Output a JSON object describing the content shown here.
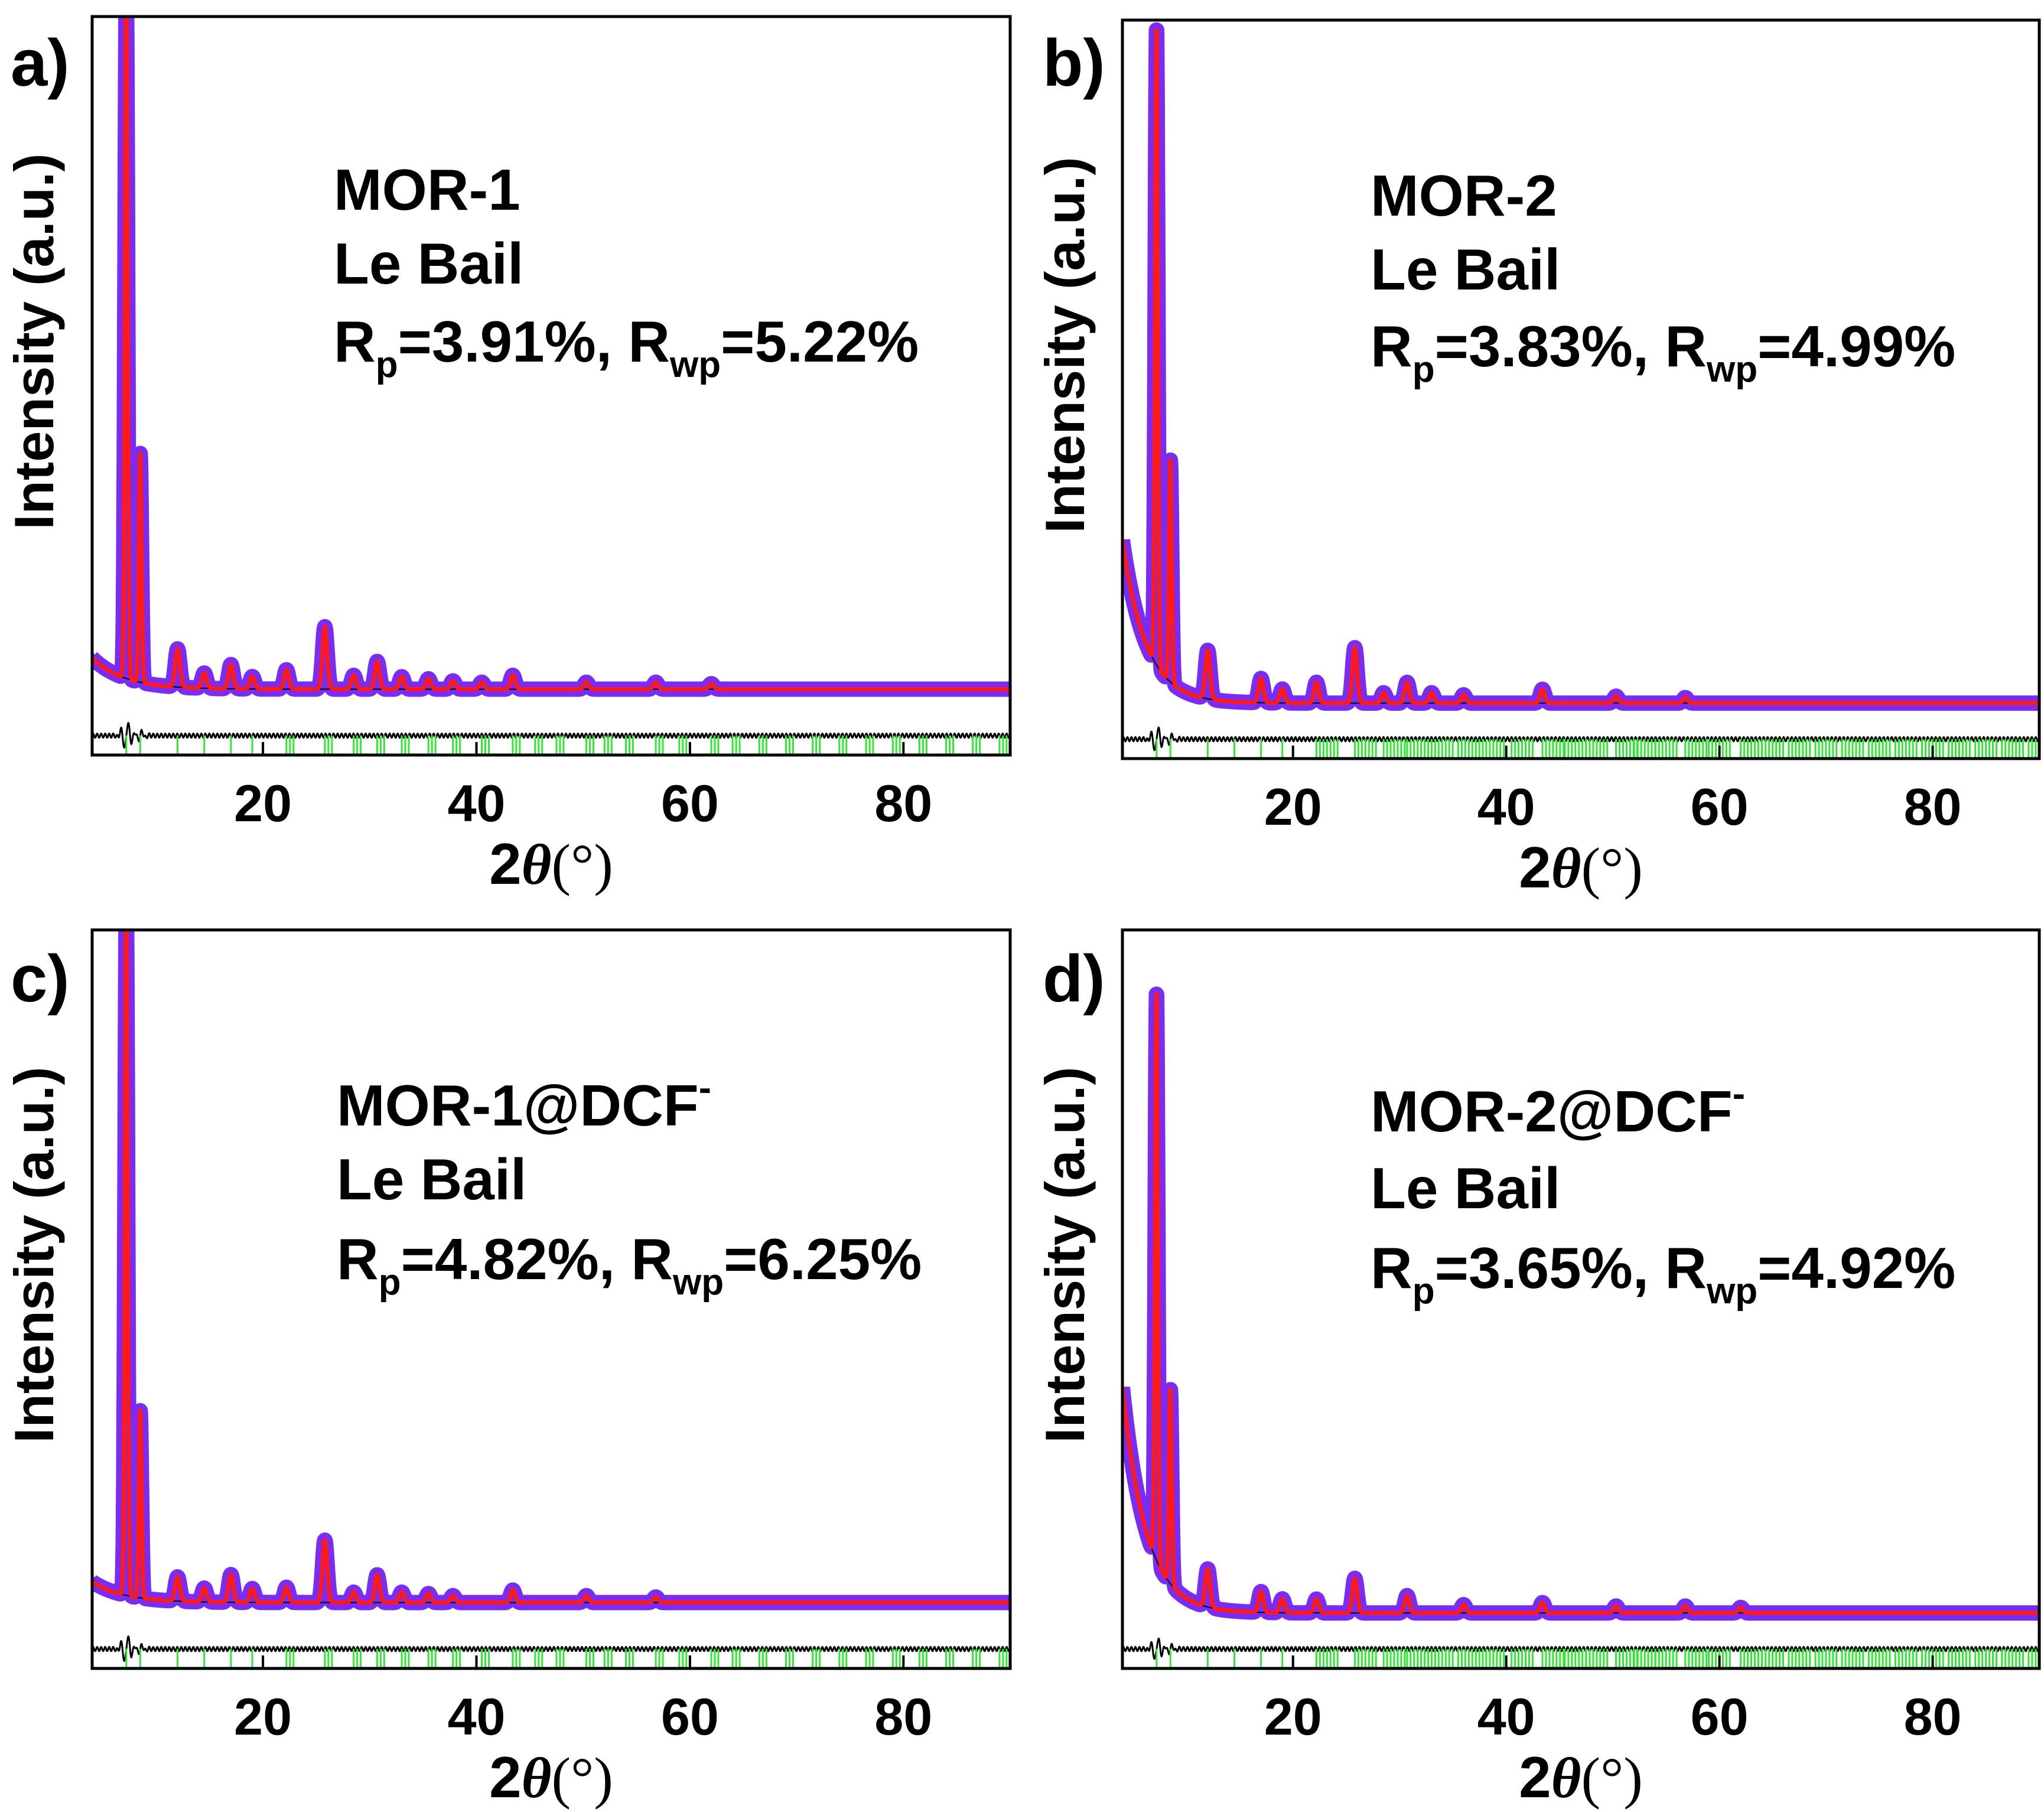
{
  "colors": {
    "observed": "#7b2cf2",
    "calculated": "#ff1a1a",
    "difference": "#000000",
    "background": "#000000",
    "bragg": "#33e633"
  },
  "chart_data": [
    {
      "type": "line",
      "panel_label": "a)",
      "sample": "MOR-1",
      "method": "Le Bail",
      "rp": "3.91%",
      "rwp": "5.22%",
      "rp_text": "3.91%, R",
      "rwp_text": "=5.22%",
      "xlabel_prefix": "2",
      "xlabel_symbol": "θ",
      "xlabel_unit": "(°)",
      "ylabel": "Intensity (a.u.)",
      "xlim": [
        4,
        90
      ],
      "ylim": [
        -0.065,
        1.0
      ],
      "xticks": [
        20,
        40,
        60,
        80
      ],
      "xtick_labels": [
        "20",
        "40",
        "60",
        "80"
      ],
      "baseline": 0.03,
      "start_intensity": 0.075,
      "bg_decay": 3.0,
      "peaks": [
        [
          7.2,
          1.0
        ],
        [
          8.5,
          0.33
        ],
        [
          12.0,
          0.055
        ],
        [
          14.5,
          0.022
        ],
        [
          17.0,
          0.035
        ],
        [
          19.0,
          0.018
        ],
        [
          22.2,
          0.028
        ],
        [
          25.8,
          0.09
        ],
        [
          28.5,
          0.02
        ],
        [
          30.7,
          0.04
        ],
        [
          33.0,
          0.018
        ],
        [
          35.5,
          0.015
        ],
        [
          37.8,
          0.012
        ],
        [
          40.5,
          0.01
        ],
        [
          43.4,
          0.02
        ],
        [
          50.3,
          0.01
        ],
        [
          56.8,
          0.01
        ],
        [
          62.0,
          0.008
        ]
      ],
      "bragg_positions": [
        7.2,
        8.5,
        12.0,
        14.5,
        17.0,
        19.0,
        22.2,
        25.8,
        28.5,
        30.7,
        33.0,
        35.5,
        37.8,
        40.5,
        43.4,
        45.5,
        47.5,
        50.3,
        52.0,
        54.0,
        56.8,
        59.0,
        62.0,
        64.0,
        66.5,
        69.0,
        71.5,
        74.0,
        76.5,
        79.0,
        81.5,
        84.0,
        86.5,
        89.0
      ],
      "bragg_density": "sparse"
    },
    {
      "type": "line",
      "panel_label": "b)",
      "sample": "MOR-2",
      "method": "Le Bail",
      "rp": "3.83%",
      "rwp": "4.99%",
      "rp_text": "3.83%, R",
      "rwp_text": "=4.99%",
      "xlabel_prefix": "2",
      "xlabel_symbol": "θ",
      "xlabel_unit": "(°)",
      "ylabel": "Intensity (a.u.)",
      "xlim": [
        4,
        90
      ],
      "ylim": [
        -0.065,
        1.0
      ],
      "xticks": [
        20,
        40,
        60,
        80
      ],
      "xtick_labels": [
        "20",
        "40",
        "60",
        "80"
      ],
      "baseline": 0.015,
      "start_intensity": 0.25,
      "bg_decay": 2.2,
      "peaks": [
        [
          7.2,
          0.92
        ],
        [
          8.5,
          0.32
        ],
        [
          12.0,
          0.07
        ],
        [
          17.0,
          0.035
        ],
        [
          19.0,
          0.02
        ],
        [
          22.2,
          0.03
        ],
        [
          25.8,
          0.08
        ],
        [
          28.5,
          0.015
        ],
        [
          30.7,
          0.03
        ],
        [
          33.0,
          0.015
        ],
        [
          36.0,
          0.012
        ],
        [
          43.4,
          0.02
        ],
        [
          50.3,
          0.01
        ],
        [
          56.8,
          0.008
        ]
      ],
      "bragg_positions": [
        7.2,
        8.5,
        12.0,
        14.5,
        17.0,
        19.0,
        22.2,
        25.8,
        28.5,
        30.7,
        33.0,
        35.5,
        37.8,
        40.5,
        43.4,
        45.5,
        47.5,
        50.3,
        52.0,
        54.0,
        56.8,
        59.0,
        62.0,
        64.0,
        66.5,
        69.0,
        71.5,
        74.0,
        76.5,
        79.0,
        81.5,
        84.0,
        86.5,
        89.0
      ],
      "bragg_density": "dense"
    },
    {
      "type": "line",
      "panel_label": "c)",
      "sample": "MOR-1@DCF",
      "sample_sup": "-",
      "method": "Le Bail",
      "rp": "4.82%",
      "rwp": "6.25%",
      "rp_text": "4.82%, R",
      "rwp_text": "=6.25%",
      "xlabel_prefix": "2",
      "xlabel_symbol": "θ",
      "xlabel_unit": "(°)",
      "ylabel": "Intensity (a.u.)",
      "xlim": [
        4,
        90
      ],
      "ylim": [
        -0.065,
        1.0
      ],
      "xticks": [
        20,
        40,
        60,
        80
      ],
      "xtick_labels": [
        "20",
        "40",
        "60",
        "80"
      ],
      "baseline": 0.03,
      "start_intensity": 0.06,
      "bg_decay": 3.0,
      "peaks": [
        [
          7.2,
          1.0
        ],
        [
          8.5,
          0.27
        ],
        [
          12.0,
          0.035
        ],
        [
          14.5,
          0.02
        ],
        [
          17.0,
          0.04
        ],
        [
          19.0,
          0.02
        ],
        [
          22.2,
          0.022
        ],
        [
          25.8,
          0.09
        ],
        [
          28.5,
          0.015
        ],
        [
          30.7,
          0.04
        ],
        [
          33.0,
          0.015
        ],
        [
          35.5,
          0.013
        ],
        [
          37.8,
          0.01
        ],
        [
          43.4,
          0.018
        ],
        [
          50.3,
          0.01
        ],
        [
          56.8,
          0.008
        ]
      ],
      "bragg_positions": [
        7.2,
        8.5,
        12.0,
        14.5,
        17.0,
        19.0,
        22.2,
        25.8,
        28.5,
        30.7,
        33.0,
        35.5,
        37.8,
        40.5,
        43.4,
        45.5,
        47.5,
        50.3,
        52.0,
        54.0,
        56.8,
        59.0,
        62.0,
        64.0,
        66.5,
        69.0,
        71.5,
        74.0,
        76.5,
        79.0,
        81.5,
        84.0,
        86.5,
        89.0
      ],
      "bragg_density": "sparse"
    },
    {
      "type": "line",
      "panel_label": "d)",
      "sample": "MOR-2@DCF",
      "sample_sup": "-",
      "method": "Le Bail",
      "rp": "3.65%",
      "rwp": "4.92%",
      "rp_text": "3.65%, R",
      "rwp_text": "=4.92%",
      "xlabel_prefix": "2",
      "xlabel_symbol": "θ",
      "xlabel_unit": "(°)",
      "ylabel": "Intensity (a.u.)",
      "xlim": [
        4,
        90
      ],
      "ylim": [
        -0.065,
        1.0
      ],
      "xticks": [
        20,
        40,
        60,
        80
      ],
      "xtick_labels": [
        "20",
        "40",
        "60",
        "80"
      ],
      "baseline": 0.015,
      "start_intensity": 0.34,
      "bg_decay": 2.2,
      "peaks": [
        [
          7.2,
          0.82
        ],
        [
          8.5,
          0.28
        ],
        [
          12.0,
          0.055
        ],
        [
          17.0,
          0.03
        ],
        [
          19.0,
          0.02
        ],
        [
          22.2,
          0.02
        ],
        [
          25.8,
          0.05
        ],
        [
          30.7,
          0.025
        ],
        [
          36.0,
          0.012
        ],
        [
          43.4,
          0.015
        ],
        [
          50.3,
          0.01
        ],
        [
          56.8,
          0.01
        ],
        [
          62.0,
          0.008
        ]
      ],
      "bragg_positions": [
        7.2,
        8.5,
        12.0,
        14.5,
        17.0,
        19.0,
        22.2,
        25.8,
        28.5,
        30.7,
        33.0,
        35.5,
        37.8,
        40.5,
        43.4,
        45.5,
        47.5,
        50.3,
        52.0,
        54.0,
        56.8,
        59.0,
        62.0,
        64.0,
        66.5,
        69.0,
        71.5,
        74.0,
        76.5,
        79.0,
        81.5,
        84.0,
        86.5,
        89.0
      ],
      "bragg_density": "dense"
    }
  ]
}
